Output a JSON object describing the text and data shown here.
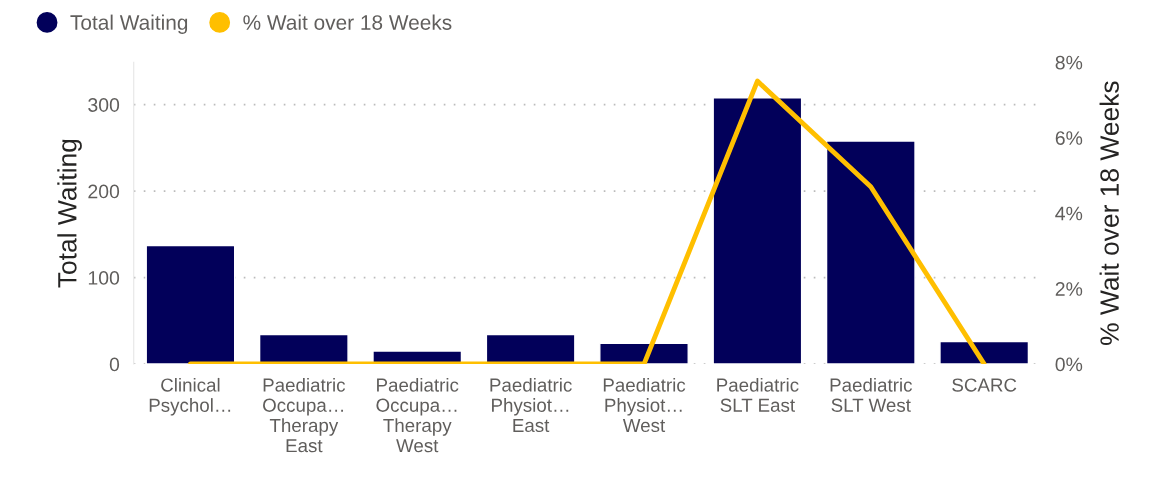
{
  "chart_data": {
    "type": "bar",
    "ylabel": "Total Waiting",
    "y2label": "% Wait over 18 Weeks",
    "categories": [
      "Clinical\nPsychol…",
      "Paediatric\nOccupa…\nTherapy\nEast",
      "Paediatric\nOccupa…\nTherapy\nWest",
      "Paediatric\nPhysiot…\nEast",
      "Paediatric\nPhysiot…\nWest",
      "Paediatric\nSLT East",
      "Paediatric\nSLT West",
      "SCARC"
    ],
    "series": [
      {
        "name": "Total Waiting",
        "color": "#02005a",
        "values": [
          137,
          34,
          15,
          34,
          24,
          308,
          258,
          26
        ]
      },
      {
        "name": "% Wait over 18 Weeks",
        "type": "line",
        "axis": "y2",
        "color": "#ffbf00",
        "values": [
          0,
          0,
          0,
          0,
          0,
          7.5,
          4.7,
          0
        ]
      }
    ],
    "ylim": [
      0,
      349
    ],
    "yticks": [
      0,
      100,
      200,
      300
    ],
    "y2lim": [
      0,
      8
    ],
    "y2ticks": [
      {
        "value": 0,
        "label": "0%"
      },
      {
        "value": 2,
        "label": "2%"
      },
      {
        "value": 4,
        "label": "4%"
      },
      {
        "value": 6,
        "label": "6%"
      },
      {
        "value": 8,
        "label": "8%"
      }
    ],
    "grid": "y",
    "legend": "top left",
    "marker": "none",
    "line_style": "solid"
  }
}
